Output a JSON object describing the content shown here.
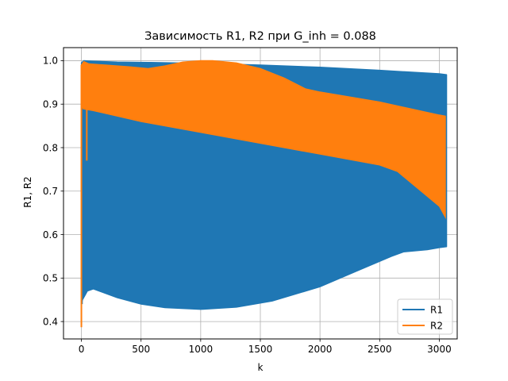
{
  "chart_data": {
    "type": "area",
    "title": "Зависимость R1, R2 при G_inh = 0.088",
    "xlabel": "k",
    "ylabel": "R1, R2",
    "xlim": [
      -150,
      3150
    ],
    "ylim": [
      0.36,
      1.03
    ],
    "xticks": [
      0,
      500,
      1000,
      1500,
      2000,
      2500,
      3000
    ],
    "yticks": [
      0.4,
      0.5,
      0.6,
      0.7,
      0.8,
      0.9,
      1.0
    ],
    "xtick_labels": [
      "0",
      "500",
      "1000",
      "1500",
      "2000",
      "2500",
      "3000"
    ],
    "ytick_labels": [
      "0.4",
      "0.5",
      "0.6",
      "0.7",
      "0.8",
      "0.9",
      "1.0"
    ],
    "grid": true,
    "legend_position": "lower right",
    "series": [
      {
        "name": "R1",
        "color": "#1f77b4",
        "upper": {
          "x": [
            0,
            20,
            100,
            300,
            560,
            580,
            1000,
            1500,
            2000,
            2500,
            3000,
            3060
          ],
          "y": [
            0.995,
            1.0,
            0.999,
            0.997,
            0.996,
            0.996,
            0.994,
            0.99,
            0.985,
            0.978,
            0.97,
            0.968
          ]
        },
        "lower": {
          "x": [
            0,
            10,
            30,
            50,
            100,
            300,
            500,
            700,
            1000,
            1300,
            1600,
            2000,
            2300,
            2600,
            2700,
            2900,
            3000,
            3060
          ],
          "y": [
            0.44,
            0.45,
            0.46,
            0.47,
            0.475,
            0.455,
            0.44,
            0.432,
            0.428,
            0.433,
            0.447,
            0.48,
            0.515,
            0.55,
            0.56,
            0.565,
            0.57,
            0.572
          ]
        }
      },
      {
        "name": "R2",
        "color": "#ff7f0e",
        "upper": {
          "x": [
            0,
            20,
            60,
            200,
            400,
            560,
            700,
            850,
            1000,
            1100,
            1300,
            1500,
            1700,
            1880,
            2000,
            2500,
            3000,
            3060
          ],
          "y": [
            0.99,
            0.998,
            0.993,
            0.99,
            0.986,
            0.982,
            0.988,
            0.997,
            1.0,
            1.0,
            0.995,
            0.982,
            0.96,
            0.935,
            0.928,
            0.905,
            0.875,
            0.872
          ]
        },
        "lower": {
          "x": [
            0,
            100,
            500,
            1000,
            1500,
            2000,
            2500,
            2650,
            3000,
            3060
          ],
          "y": [
            0.89,
            0.885,
            0.86,
            0.835,
            0.81,
            0.785,
            0.76,
            0.745,
            0.665,
            0.635
          ]
        }
      }
    ]
  }
}
